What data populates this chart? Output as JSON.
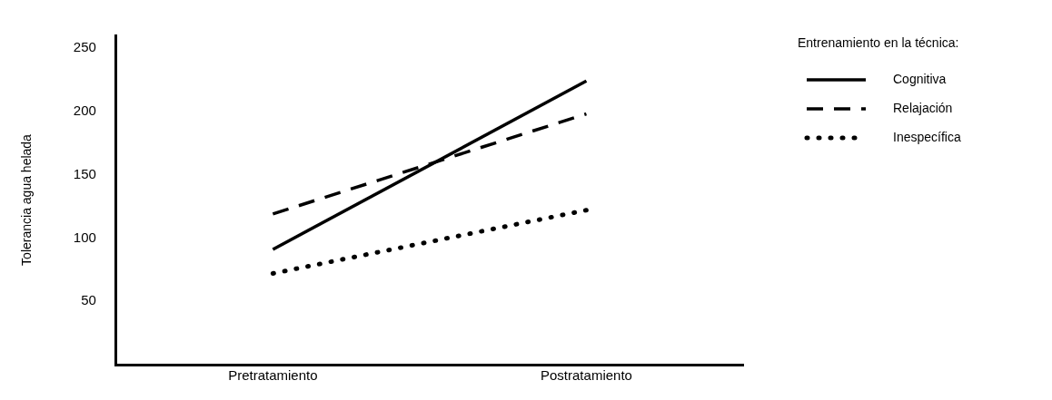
{
  "chart_data": {
    "type": "line",
    "ylabel": "Tolerancia agua helada",
    "legend_title": "Entrenamiento en la técnica:",
    "categories": [
      "Pretratamiento",
      "Postratamiento"
    ],
    "ylim": [
      0,
      260
    ],
    "yticks": [
      50,
      100,
      150,
      200,
      250
    ],
    "grid": false,
    "legend": "right",
    "marker": "none",
    "series": [
      {
        "name": "Cognitiva",
        "color": "#000000",
        "values": [
          91,
          224
        ],
        "line_style": "solid"
      },
      {
        "name": "Relajación",
        "color": "#000000",
        "values": [
          119,
          198
        ],
        "line_style": "dashed"
      },
      {
        "name": "Inespecífica",
        "color": "#000000",
        "values": [
          72,
          122
        ],
        "line_style": "dotted"
      }
    ]
  }
}
